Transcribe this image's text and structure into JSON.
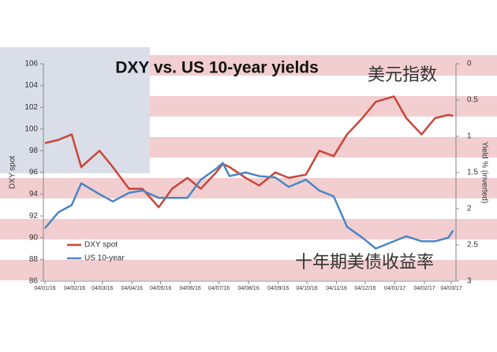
{
  "chart_data": {
    "type": "line",
    "title": "DXY vs. US 10-year yields",
    "y_label": "DXY spot",
    "y2_label": "Yield % (inverted)",
    "x": [
      "04/01/16",
      "18/01/16",
      "01/02/16",
      "11/02/16",
      "01/03/16",
      "15/03/16",
      "01/04/16",
      "15/04/16",
      "02/05/16",
      "16/05/16",
      "01/06/16",
      "15/06/16",
      "01/07/16",
      "08/07/16",
      "15/07/16",
      "01/08/16",
      "15/08/16",
      "01/09/16",
      "15/09/16",
      "03/10/16",
      "17/10/16",
      "01/11/16",
      "15/11/16",
      "01/12/16",
      "15/12/16",
      "03/01/17",
      "16/01/17",
      "01/02/17",
      "15/02/17",
      "01/03/17",
      "06/03/17"
    ],
    "xlim": [
      "04/01/16",
      "04/03/17"
    ],
    "xticks": [
      "04/01/16",
      "04/02/16",
      "04/03/16",
      "04/04/16",
      "04/05/16",
      "04/06/16",
      "04/07/16",
      "04/08/16",
      "04/09/16",
      "04/10/16",
      "04/11/16",
      "04/12/16",
      "04/01/17",
      "04/02/17",
      "04/03/17"
    ],
    "ylim": [
      86,
      106
    ],
    "yticks": [
      86,
      88,
      90,
      92,
      94,
      96,
      98,
      100,
      102,
      104,
      106
    ],
    "y2lim": [
      0,
      3
    ],
    "y2_inverted": true,
    "y2ticks": [
      0,
      0.5,
      1,
      1.5,
      2,
      2.5,
      3
    ],
    "legend": "lower left",
    "series": [
      {
        "name": "DXY spot",
        "color": "#c9453a",
        "values": [
          98.7,
          99,
          99.5,
          96.5,
          98,
          96.5,
          94.5,
          94.5,
          92.8,
          94.5,
          95.5,
          94.5,
          96,
          96.8,
          96.5,
          95.5,
          94.8,
          96,
          95.5,
          95.8,
          98,
          97.5,
          99.5,
          101,
          102.5,
          103,
          101,
          99.5,
          101,
          101.3,
          101.2
        ]
      },
      {
        "name": "US 10-year",
        "color": "#4a86c5",
        "axis": "y2",
        "values": [
          2.27,
          2.05,
          1.95,
          1.65,
          1.8,
          1.9,
          1.78,
          1.75,
          1.85,
          1.85,
          1.85,
          1.6,
          1.45,
          1.37,
          1.55,
          1.5,
          1.55,
          1.57,
          1.7,
          1.6,
          1.75,
          1.83,
          2.25,
          2.4,
          2.55,
          2.45,
          2.38,
          2.45,
          2.45,
          2.4,
          2.3
        ]
      }
    ],
    "annotations": [
      {
        "text": "美元指数",
        "color": "#d9483b"
      },
      {
        "text": "十年期美债收益率",
        "color": "#3f7fc0"
      }
    ]
  }
}
